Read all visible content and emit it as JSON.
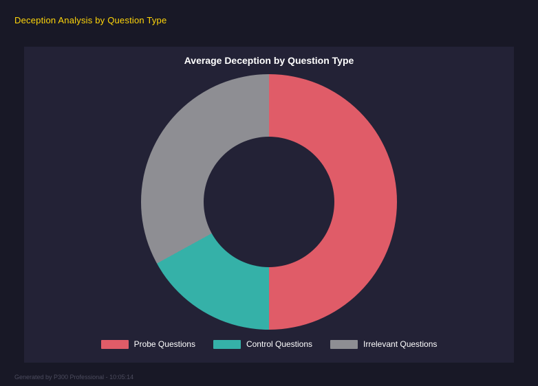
{
  "page": {
    "title": "Deception Analysis by Question Type",
    "footer": "Generated by P300 Professional - 10:05:14"
  },
  "chart_data": {
    "type": "pie",
    "variant": "donut",
    "title": "Average Deception by Question Type",
    "labels": [
      "Probe Questions",
      "Control Questions",
      "Irrelevant Questions"
    ],
    "values": [
      50,
      17,
      33
    ],
    "colors": [
      "#e05c68",
      "#35b1a8",
      "#8e8e93"
    ],
    "legend_position": "bottom",
    "start_angle_deg": 0,
    "direction": "clockwise",
    "panel_background": "#232236"
  }
}
